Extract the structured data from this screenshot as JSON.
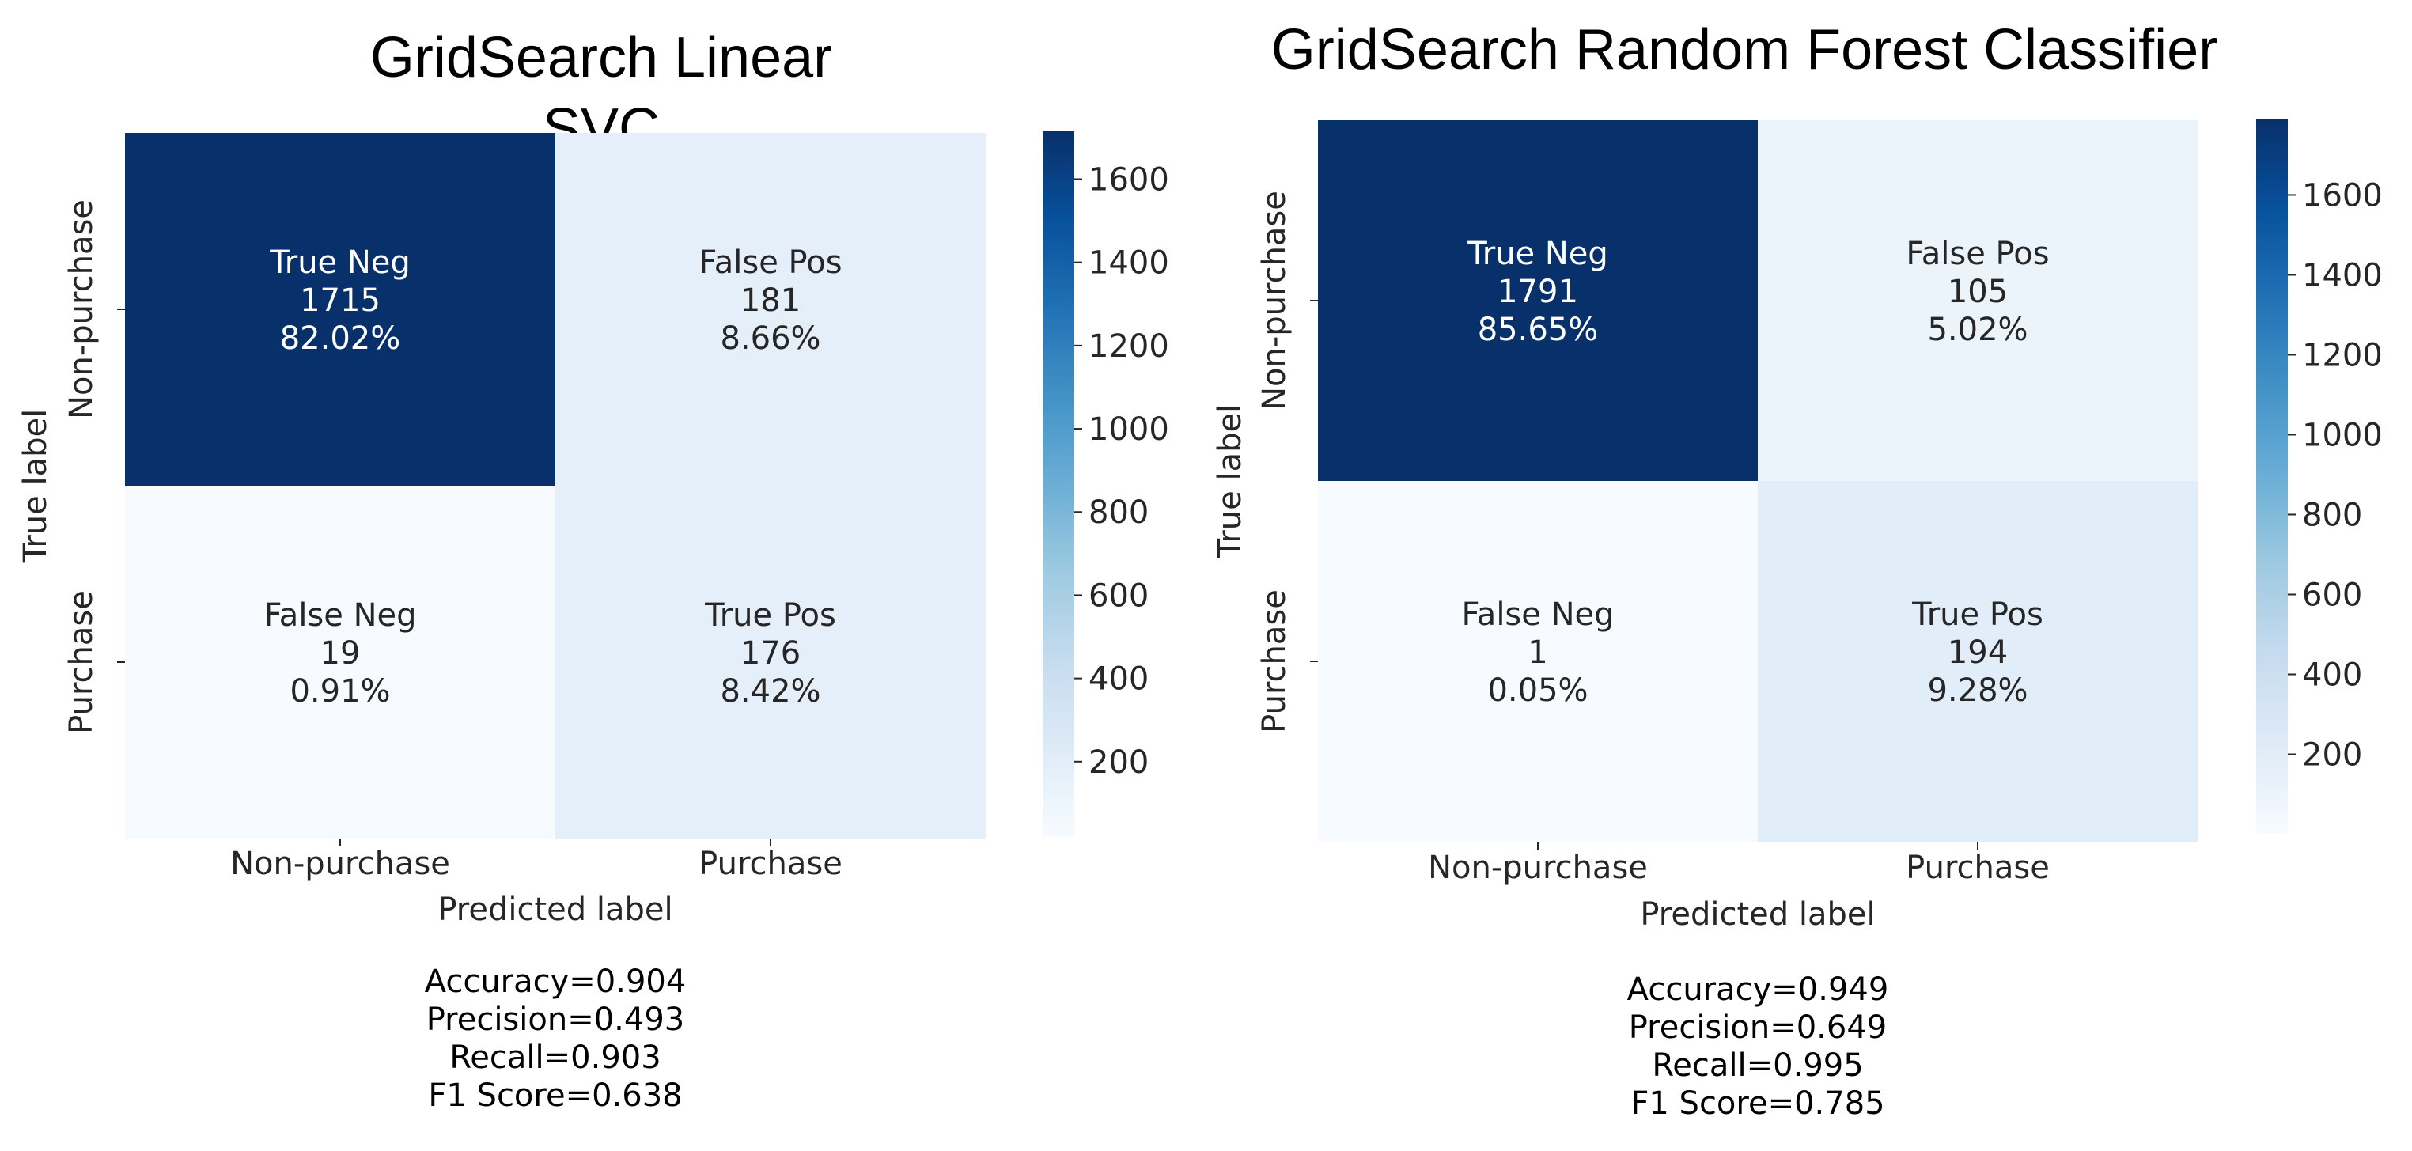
{
  "chart_data": [
    {
      "type": "heatmap",
      "title_lines": [
        "GridSearch Linear",
        "SVC"
      ],
      "xlabel": "Predicted label",
      "ylabel": "True label",
      "x_categories": [
        "Non-purchase",
        "Purchase"
      ],
      "y_categories": [
        "Non-purchase",
        "Purchase"
      ],
      "cells": [
        [
          {
            "label": "True Neg",
            "count": "1715",
            "percent": "82.02%",
            "value": 1715
          },
          {
            "label": "False Pos",
            "count": "181",
            "percent": "8.66%",
            "value": 181
          }
        ],
        [
          {
            "label": "False Neg",
            "count": "19",
            "percent": "0.91%",
            "value": 19
          },
          {
            "label": "True Pos",
            "count": "176",
            "percent": "8.42%",
            "value": 176
          }
        ]
      ],
      "colorbar": {
        "min": 19,
        "max": 1715,
        "ticks": [
          "200",
          "400",
          "600",
          "800",
          "1000",
          "1200",
          "1400",
          "1600"
        ]
      },
      "metrics": [
        "Accuracy=0.904",
        "Precision=0.493",
        "Recall=0.903",
        "F1 Score=0.638"
      ]
    },
    {
      "type": "heatmap",
      "title_lines": [
        "GridSearch Random Forest Classifier"
      ],
      "xlabel": "Predicted label",
      "ylabel": "True label",
      "x_categories": [
        "Non-purchase",
        "Purchase"
      ],
      "y_categories": [
        "Non-purchase",
        "Purchase"
      ],
      "cells": [
        [
          {
            "label": "True Neg",
            "count": "1791",
            "percent": "85.65%",
            "value": 1791
          },
          {
            "label": "False Pos",
            "count": "105",
            "percent": "5.02%",
            "value": 105
          }
        ],
        [
          {
            "label": "False Neg",
            "count": "1",
            "percent": "0.05%",
            "value": 1
          },
          {
            "label": "True Pos",
            "count": "194",
            "percent": "9.28%",
            "value": 194
          }
        ]
      ],
      "colorbar": {
        "min": 1,
        "max": 1791,
        "ticks": [
          "200",
          "400",
          "600",
          "800",
          "1000",
          "1200",
          "1400",
          "1600"
        ]
      },
      "metrics": [
        "Accuracy=0.949",
        "Precision=0.649",
        "Recall=0.995",
        "F1 Score=0.785"
      ]
    }
  ]
}
